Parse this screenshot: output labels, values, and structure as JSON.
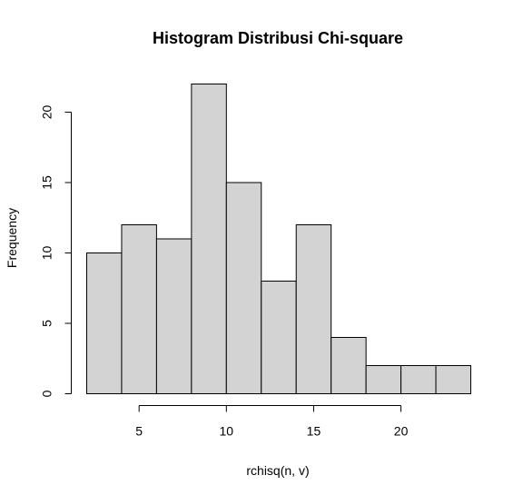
{
  "chart_data": {
    "type": "bar",
    "subtype": "histogram",
    "title": "Histogram Distribusi Chi-square",
    "xlabel": "rchisq(n, v)",
    "ylabel": "Frequency",
    "bin_edges": [
      2,
      4,
      6,
      8,
      10,
      12,
      14,
      16,
      18,
      20,
      22,
      24
    ],
    "values": [
      10,
      12,
      11,
      22,
      15,
      8,
      12,
      4,
      2,
      2,
      2
    ],
    "xlim": [
      2,
      24
    ],
    "ylim": [
      0,
      22
    ],
    "x_ticks": [
      5,
      10,
      15,
      20
    ],
    "x_tick_labels": [
      "5",
      "10",
      "15",
      "20"
    ],
    "y_ticks": [
      0,
      5,
      10,
      15,
      20
    ],
    "y_tick_labels": [
      "0",
      "5",
      "10",
      "15",
      "20"
    ],
    "bar_fill": "#d3d3d3",
    "bar_stroke": "#000000",
    "grid": false,
    "legend": "none"
  }
}
